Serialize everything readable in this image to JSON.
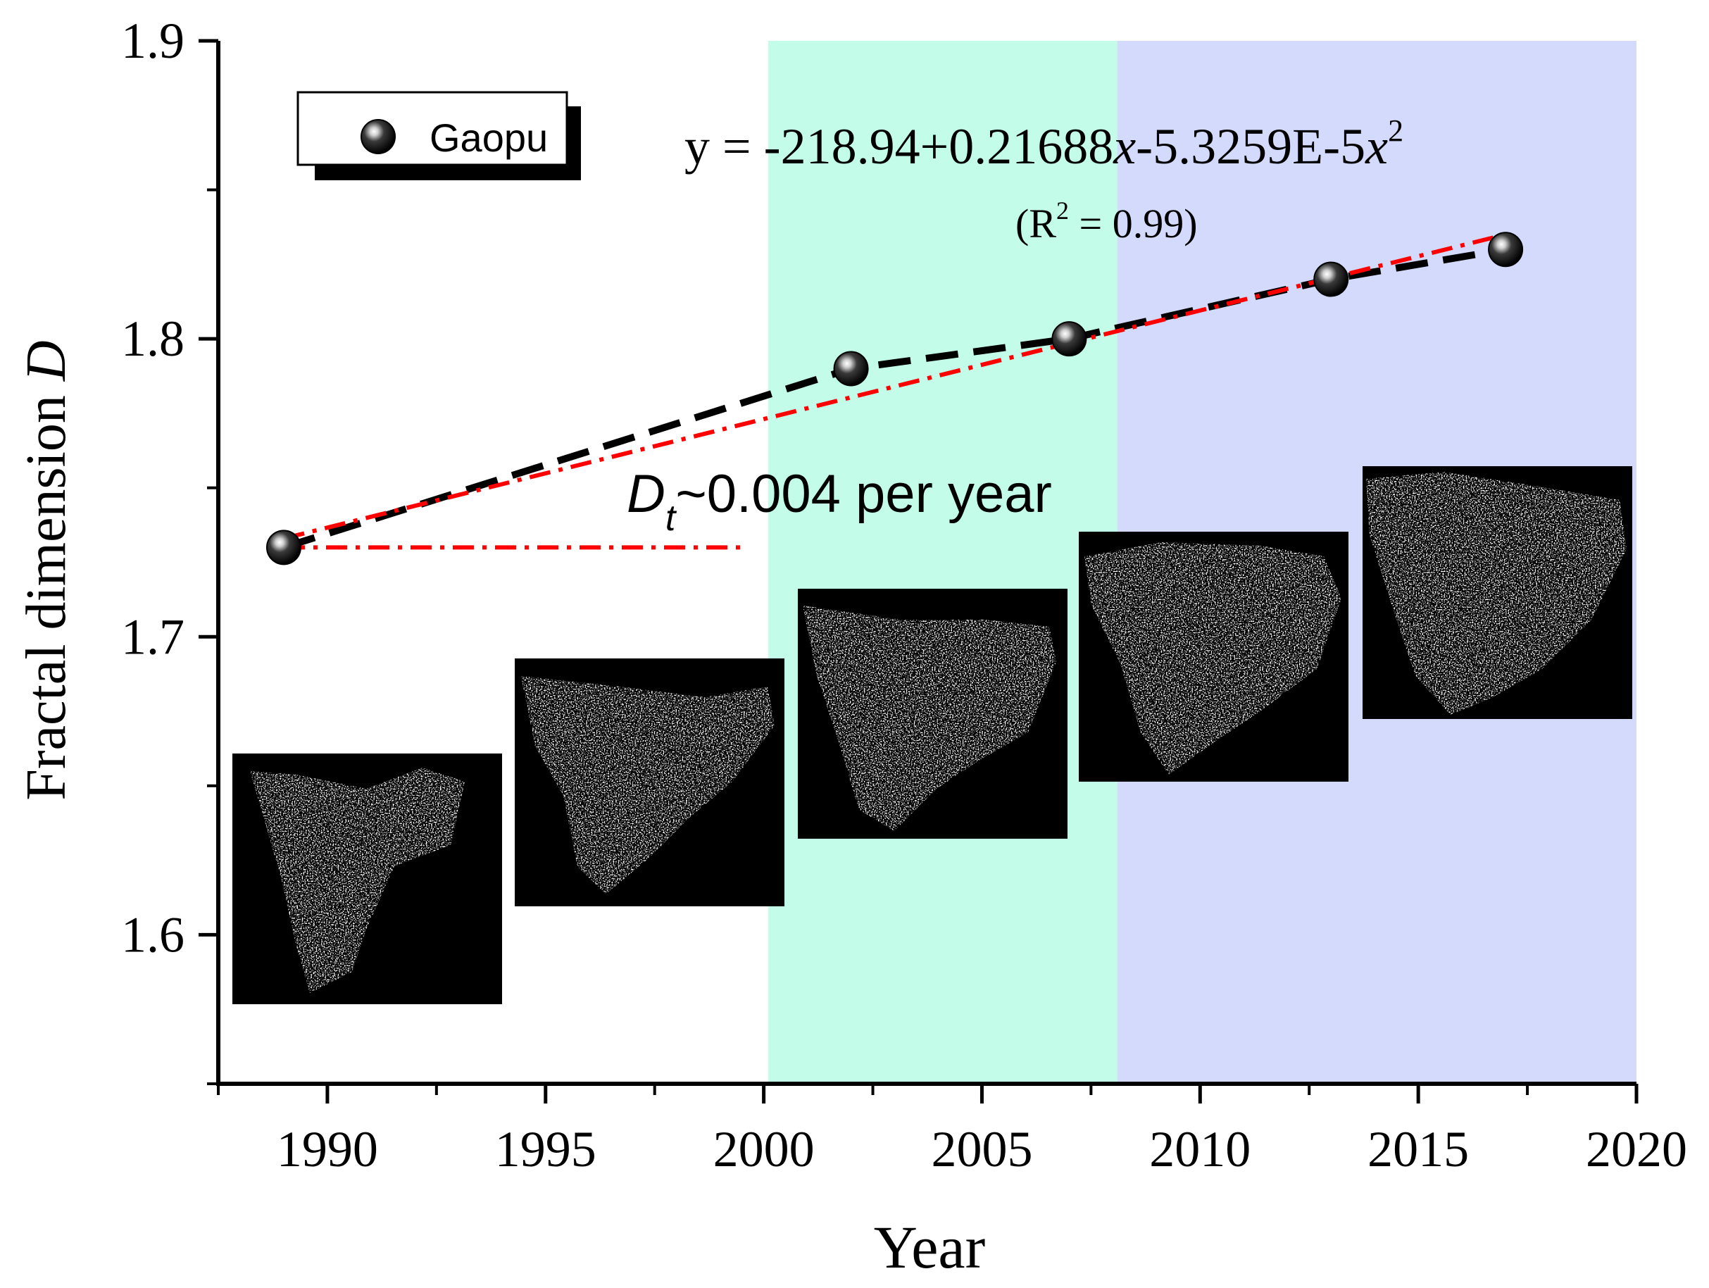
{
  "chart_data": {
    "type": "scatter",
    "title": "",
    "xlabel": "Year",
    "ylabel_prefix": "Fractal dimension ",
    "ylabel_var": "D",
    "xlim": [
      1987.5,
      2020
    ],
    "ylim": [
      1.55,
      1.9
    ],
    "x_ticks": [
      1990,
      1995,
      2000,
      2005,
      2010,
      2015,
      2020
    ],
    "x_tick_labels": [
      "1990",
      "1995",
      "2000",
      "2005",
      "2010",
      "2015",
      "2020"
    ],
    "y_ticks": [
      1.6,
      1.7,
      1.8,
      1.9
    ],
    "y_tick_labels": [
      "1.6",
      "1.7",
      "1.8",
      "1.9"
    ],
    "grid": false,
    "legend": {
      "placement": "top-left",
      "entries": [
        "Gaopu"
      ]
    },
    "series": [
      {
        "name": "Gaopu",
        "x": [
          1989,
          2002,
          2007,
          2013,
          2017
        ],
        "y": [
          1.73,
          1.79,
          1.8,
          1.82,
          1.83
        ]
      }
    ],
    "fit": {
      "equation": {
        "lhs": "y = ",
        "c0": "-218.94",
        "c1": "+0.21688",
        "var": "x",
        "c2": "-5.3259E-5",
        "exp": "2"
      },
      "r2": {
        "open": "(R",
        "sup": "2",
        "close": " = 0.99)"
      },
      "color": "#000000"
    },
    "trend": {
      "color": "#ff0000",
      "start": [
        1989,
        1.733
      ],
      "end": [
        2017,
        1.835
      ],
      "baseline_end_x": 1999.5,
      "label_var": "D",
      "label_sub": "t",
      "label_text": "~0.004 per year"
    },
    "bands": [
      {
        "x0": 2000.1,
        "x1": 2008.1,
        "color": "#c3fde9"
      },
      {
        "x0": 2008.1,
        "x1": 2020,
        "color": "#d3dafc"
      }
    ],
    "map_insets": [
      {
        "name": "map-1989"
      },
      {
        "name": "map-1995"
      },
      {
        "name": "map-2002"
      },
      {
        "name": "map-2007"
      },
      {
        "name": "map-2013"
      }
    ]
  }
}
